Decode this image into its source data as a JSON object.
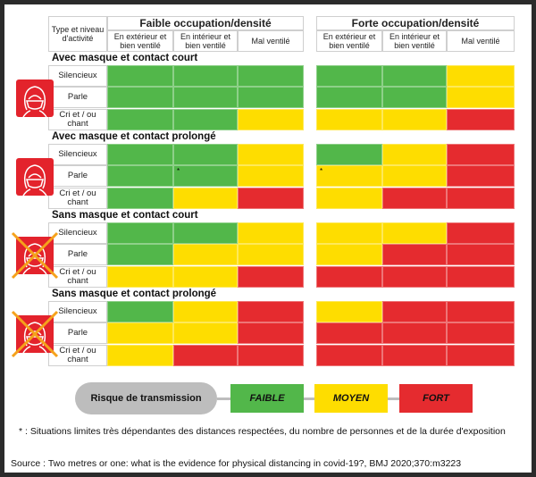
{
  "header": {
    "row_label": "Type et niveau d'activité",
    "groups": [
      "Faible occupation/densité",
      "Forte occupation/densité"
    ],
    "columns": [
      "En extérieur et bien ventilé",
      "En intérieur et bien ventilé",
      "Mal ventilé"
    ]
  },
  "colors": {
    "green": "#52b74a",
    "yellow": "#fedd00",
    "red": "#e52b2f"
  },
  "sections": [
    {
      "title": "Avec masque et contact court",
      "icon": "masked-face-icon",
      "rows": [
        {
          "label": "Silencieux",
          "cells": [
            "green",
            "green",
            "green",
            "green",
            "green",
            "yellow"
          ]
        },
        {
          "label": "Parle",
          "cells": [
            "green",
            "green",
            "green",
            "green",
            "green",
            "yellow"
          ]
        },
        {
          "label": "Cri et / ou chant",
          "cells": [
            "green",
            "green",
            "yellow",
            "yellow",
            "yellow",
            "red"
          ]
        }
      ]
    },
    {
      "title": "Avec masque et contact prolongé",
      "icon": "masked-face-icon",
      "rows": [
        {
          "label": "Silencieux",
          "cells": [
            "green",
            "green",
            "yellow",
            "green",
            "yellow",
            "red"
          ]
        },
        {
          "label": "Parle",
          "cells": [
            "green",
            "green*",
            "yellow",
            "yellow*",
            "yellow",
            "red"
          ]
        },
        {
          "label": "Cri et / ou chant",
          "cells": [
            "green",
            "yellow",
            "red",
            "yellow",
            "red",
            "red"
          ]
        }
      ]
    },
    {
      "title": "Sans masque et contact court",
      "icon": "crossed-mask-face-icon",
      "rows": [
        {
          "label": "Silencieux",
          "cells": [
            "green",
            "green",
            "yellow",
            "yellow",
            "yellow",
            "red"
          ]
        },
        {
          "label": "Parle",
          "cells": [
            "green",
            "yellow",
            "yellow",
            "yellow",
            "red",
            "red"
          ]
        },
        {
          "label": "Cri et / ou chant",
          "cells": [
            "yellow",
            "yellow",
            "red",
            "red",
            "red",
            "red"
          ]
        }
      ]
    },
    {
      "title": "Sans masque et contact prolongé",
      "icon": "crossed-mask-face-icon",
      "rows": [
        {
          "label": "Silencieux",
          "cells": [
            "green",
            "yellow",
            "red",
            "yellow",
            "red",
            "red"
          ]
        },
        {
          "label": "Parle",
          "cells": [
            "yellow",
            "yellow",
            "red",
            "red",
            "red",
            "red"
          ]
        },
        {
          "label": "Cri et / ou chant",
          "cells": [
            "yellow",
            "red",
            "red",
            "red",
            "red",
            "red"
          ]
        }
      ]
    }
  ],
  "legend": {
    "title": "Risque de transmission",
    "low": "FAIBLE",
    "medium": "MOYEN",
    "high": "FORT"
  },
  "footnote": "* : Situations limites très dépendantes des distances respectées, du nombre de personnes et de la durée d'exposition",
  "source": "Source : Two metres or one: what is the evidence for physical distancing in covid-19?, BMJ 2020;370:m3223"
}
